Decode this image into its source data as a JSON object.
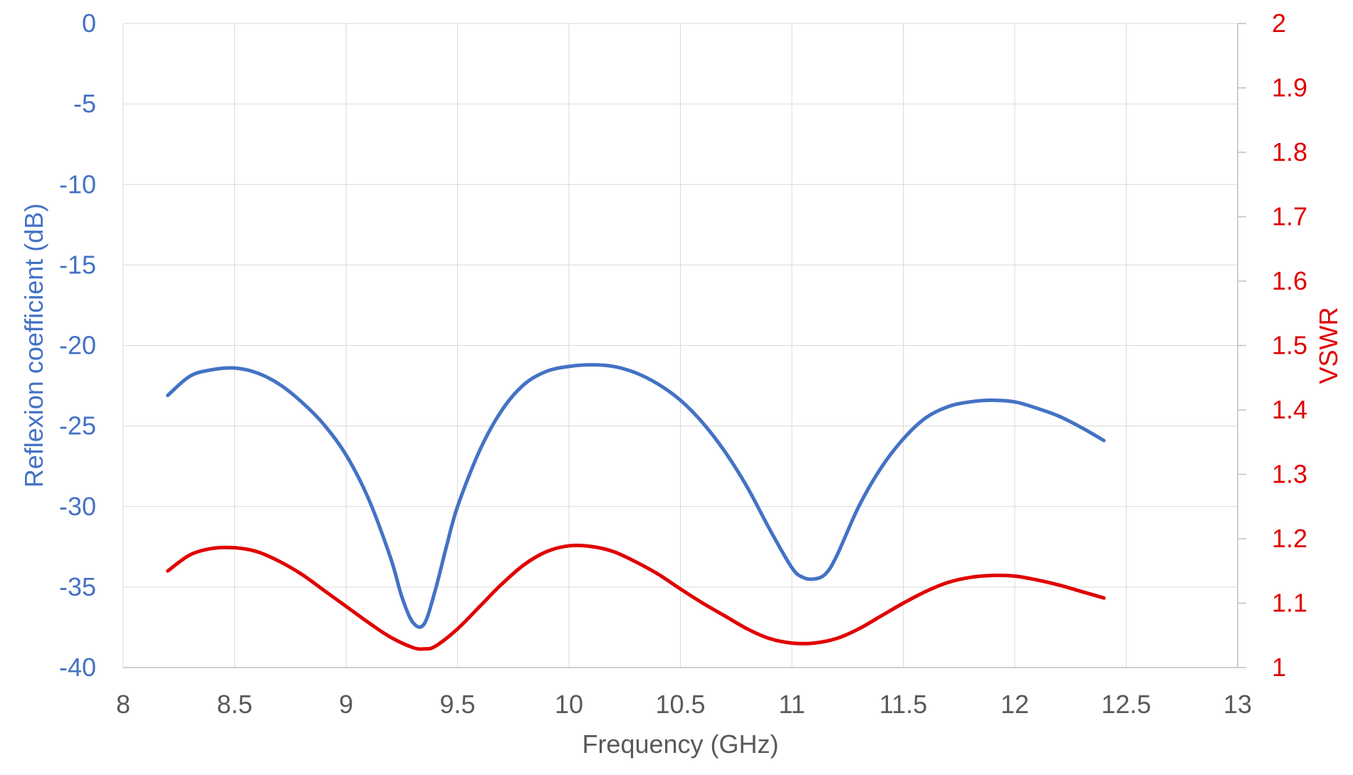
{
  "chart_data": {
    "type": "line",
    "xlabel": "Frequency (GHz)",
    "ylabel_left": "Reflexion coefficient (dB)",
    "ylabel_right": "VSWR",
    "xlim": [
      8,
      13
    ],
    "ylim_left": [
      -40,
      0
    ],
    "ylim_right": [
      1,
      2
    ],
    "x_ticks": [
      "8",
      "8.5",
      "9",
      "9.5",
      "10",
      "10.5",
      "11",
      "11.5",
      "12",
      "12.5",
      "13"
    ],
    "y_left_ticks": [
      "0",
      "-5",
      "-10",
      "-15",
      "-20",
      "-25",
      "-30",
      "-35",
      "-40"
    ],
    "y_right_ticks": [
      "2",
      "1.9",
      "1.8",
      "1.7",
      "1.6",
      "1.5",
      "1.4",
      "1.3",
      "1.2",
      "1.1",
      "1"
    ],
    "grid": true,
    "colors": {
      "left_axis": "#4472c4",
      "right_axis": "#e00000",
      "ticks_x": "#595959"
    },
    "series": [
      {
        "axis": "left",
        "color": "#4472c4",
        "x": [
          8.2,
          8.3,
          8.4,
          8.5,
          8.6,
          8.7,
          8.8,
          8.9,
          9.0,
          9.1,
          9.2,
          9.25,
          9.3,
          9.35,
          9.4,
          9.45,
          9.5,
          9.6,
          9.7,
          9.8,
          9.9,
          10.0,
          10.1,
          10.2,
          10.3,
          10.4,
          10.5,
          10.6,
          10.7,
          10.8,
          10.9,
          11.0,
          11.05,
          11.1,
          11.15,
          11.2,
          11.3,
          11.4,
          11.5,
          11.6,
          11.7,
          11.8,
          11.9,
          12.0,
          12.1,
          12.2,
          12.3,
          12.4
        ],
        "y": [
          -23.1,
          -21.9,
          -21.5,
          -21.4,
          -21.7,
          -22.4,
          -23.5,
          -24.9,
          -26.8,
          -29.5,
          -33.2,
          -35.6,
          -37.2,
          -37.3,
          -35.2,
          -32.5,
          -30.0,
          -26.5,
          -24.0,
          -22.4,
          -21.6,
          -21.3,
          -21.2,
          -21.3,
          -21.7,
          -22.4,
          -23.4,
          -24.8,
          -26.6,
          -28.8,
          -31.4,
          -33.8,
          -34.4,
          -34.5,
          -34.2,
          -33.1,
          -30.0,
          -27.6,
          -25.8,
          -24.5,
          -23.8,
          -23.5,
          -23.4,
          -23.5,
          -23.9,
          -24.4,
          -25.1,
          -25.9
        ]
      },
      {
        "axis": "right",
        "color": "#e00000",
        "x": [
          8.2,
          8.3,
          8.4,
          8.5,
          8.6,
          8.7,
          8.8,
          8.9,
          9.0,
          9.1,
          9.2,
          9.3,
          9.35,
          9.4,
          9.5,
          9.6,
          9.7,
          9.8,
          9.9,
          10.0,
          10.1,
          10.2,
          10.3,
          10.4,
          10.5,
          10.6,
          10.7,
          10.8,
          10.9,
          11.0,
          11.1,
          11.2,
          11.3,
          11.4,
          11.5,
          11.6,
          11.7,
          11.8,
          11.9,
          12.0,
          12.1,
          12.2,
          12.3,
          12.4
        ],
        "y": [
          1.15,
          1.175,
          1.185,
          1.186,
          1.18,
          1.165,
          1.145,
          1.12,
          1.095,
          1.07,
          1.047,
          1.031,
          1.029,
          1.033,
          1.06,
          1.095,
          1.13,
          1.16,
          1.18,
          1.189,
          1.188,
          1.18,
          1.164,
          1.145,
          1.122,
          1.1,
          1.08,
          1.06,
          1.045,
          1.038,
          1.038,
          1.045,
          1.06,
          1.08,
          1.1,
          1.118,
          1.132,
          1.14,
          1.143,
          1.142,
          1.136,
          1.128,
          1.118,
          1.108
        ]
      }
    ]
  }
}
